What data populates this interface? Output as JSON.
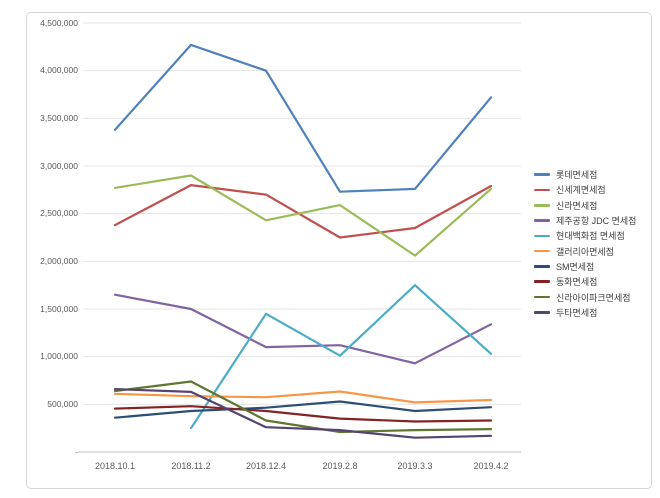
{
  "chart_data": {
    "type": "line",
    "title": "",
    "xlabel": "",
    "ylabel": "",
    "ylim": [
      0,
      4500000
    ],
    "grid": "horizontal",
    "legend_position": "right",
    "categories": [
      "2018.10.1",
      "2018.11.2",
      "2018.12.4",
      "2019.2.8",
      "2019.3.3",
      "2019.4.2"
    ],
    "y_ticks": [
      {
        "value": 4500000,
        "label": "4,500,000"
      },
      {
        "value": 4000000,
        "label": "4,000,000"
      },
      {
        "value": 3500000,
        "label": "3,500,000"
      },
      {
        "value": 3000000,
        "label": "3,000,000"
      },
      {
        "value": 2500000,
        "label": "2,500,000"
      },
      {
        "value": 2000000,
        "label": "2,000,000"
      },
      {
        "value": 1500000,
        "label": "1,500,000"
      },
      {
        "value": 1000000,
        "label": "1,000,000"
      },
      {
        "value": 500000,
        "label": "500,000"
      },
      {
        "value": 0,
        "label": "-"
      }
    ],
    "series": [
      {
        "name": "롯데면세점",
        "color": "#4F81BD",
        "values": [
          3380000,
          4270000,
          4000000,
          2730000,
          2760000,
          3720000
        ]
      },
      {
        "name": "신세계면세점",
        "color": "#C0504D",
        "values": [
          2380000,
          2800000,
          2700000,
          2250000,
          2350000,
          2790000
        ]
      },
      {
        "name": "신라면세점",
        "color": "#9BBB59",
        "values": [
          2770000,
          2900000,
          2430000,
          2590000,
          2060000,
          2760000
        ]
      },
      {
        "name": "제주공항 JDC 면세점",
        "color": "#8064A2",
        "values": [
          1650000,
          1500000,
          1100000,
          1120000,
          930000,
          1340000
        ]
      },
      {
        "name": "현대백화점 면세점",
        "color": "#4BACC6",
        "values": [
          null,
          250000,
          1450000,
          1010000,
          1750000,
          1030000
        ]
      },
      {
        "name": "갤러리아면세점",
        "color": "#F79646",
        "values": [
          610000,
          585000,
          575000,
          635000,
          520000,
          545000
        ]
      },
      {
        "name": "SM면세점",
        "color": "#2C4D75",
        "values": [
          360000,
          430000,
          465000,
          530000,
          430000,
          470000
        ]
      },
      {
        "name": "동화면세점",
        "color": "#822423",
        "values": [
          455000,
          480000,
          430000,
          350000,
          320000,
          330000
        ]
      },
      {
        "name": "신라아이파크면세점",
        "color": "#5F7530",
        "values": [
          640000,
          740000,
          330000,
          210000,
          230000,
          240000
        ]
      },
      {
        "name": "두타면세점",
        "color": "#544373",
        "values": [
          660000,
          630000,
          260000,
          230000,
          150000,
          170000
        ]
      }
    ]
  }
}
